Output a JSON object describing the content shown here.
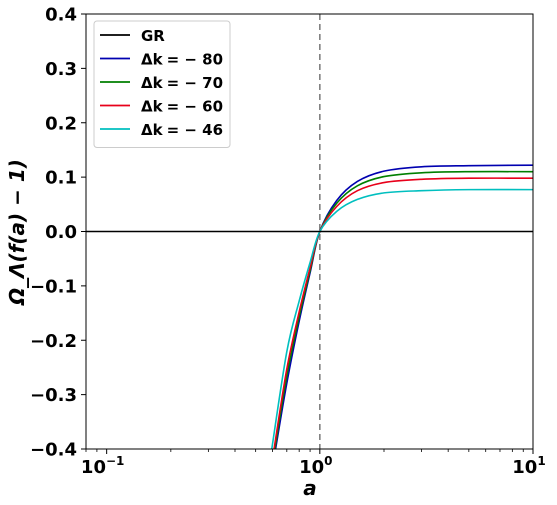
{
  "chart_data": {
    "type": "line",
    "xlabel": "a",
    "ylabel": "Ω_Λ(f(a) − 1)",
    "xscale": "log",
    "xlim": [
      0.08,
      10
    ],
    "ylim": [
      -0.4,
      0.4
    ],
    "x_ticks": [
      {
        "value": 0.1,
        "base": "10",
        "exp": "−1"
      },
      {
        "value": 1,
        "base": "10",
        "exp": "0"
      },
      {
        "value": 10,
        "base": "10",
        "exp": "1"
      }
    ],
    "y_ticks": [
      {
        "value": 0.4,
        "label": "0.4"
      },
      {
        "value": 0.3,
        "label": "0.3"
      },
      {
        "value": 0.2,
        "label": "0.2"
      },
      {
        "value": 0.1,
        "label": "0.1"
      },
      {
        "value": 0.0,
        "label": "0.0"
      },
      {
        "value": -0.1,
        "label": "−0.1"
      },
      {
        "value": -0.2,
        "label": "−0.2"
      },
      {
        "value": -0.3,
        "label": "−0.3"
      },
      {
        "value": -0.4,
        "label": "−0.4"
      }
    ],
    "vline": {
      "x": 1.0,
      "style": "dashed",
      "color": "#808080"
    },
    "grid": false,
    "legend_position": "upper-left",
    "series": [
      {
        "name": "GR",
        "legend_label": "GR",
        "color": "#000000",
        "x": [
          0.08,
          1,
          10
        ],
        "y": [
          0,
          0,
          0
        ]
      },
      {
        "name": "Δk = −80",
        "legend_prefix": "Δk",
        "legend_value": "= − 80",
        "color": "#0000b0",
        "x": [
          0.62,
          0.7,
          0.8,
          0.9,
          1.0,
          1.2,
          1.5,
          2.0,
          3.0,
          5.0,
          10.0
        ],
        "y": [
          -0.4,
          -0.279,
          -0.165,
          -0.076,
          0.0,
          0.057,
          0.092,
          0.111,
          0.119,
          0.121,
          0.122
        ]
      },
      {
        "name": "Δk = −70",
        "legend_prefix": "Δk",
        "legend_value": "= − 70",
        "color": "#007f00",
        "x": [
          0.615,
          0.7,
          0.8,
          0.9,
          1.0,
          1.2,
          1.5,
          2.0,
          3.0,
          5.0,
          10.0
        ],
        "y": [
          -0.4,
          -0.266,
          -0.157,
          -0.072,
          0.0,
          0.052,
          0.084,
          0.101,
          0.108,
          0.11,
          0.11
        ]
      },
      {
        "name": "Δk = −60",
        "legend_prefix": "Δk",
        "legend_value": "= − 60",
        "color": "#e8001a",
        "x": [
          0.61,
          0.7,
          0.8,
          0.9,
          1.0,
          1.2,
          1.5,
          2.0,
          3.0,
          5.0,
          10.0
        ],
        "y": [
          -0.4,
          -0.253,
          -0.148,
          -0.067,
          0.0,
          0.046,
          0.075,
          0.09,
          0.096,
          0.098,
          0.098
        ]
      },
      {
        "name": "Δk = −46",
        "legend_prefix": "Δk",
        "legend_value": "= − 46",
        "color": "#00bfbf",
        "x": [
          0.595,
          0.7,
          0.8,
          0.9,
          1.0,
          1.2,
          1.5,
          2.0,
          3.0,
          5.0,
          10.0
        ],
        "y": [
          -0.4,
          -0.221,
          -0.128,
          -0.057,
          0.0,
          0.037,
          0.059,
          0.071,
          0.075,
          0.077,
          0.077
        ]
      }
    ]
  }
}
